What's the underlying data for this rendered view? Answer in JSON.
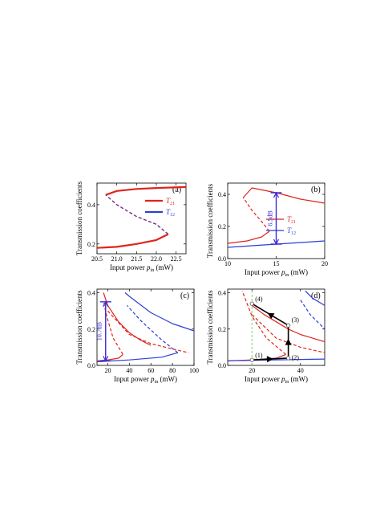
{
  "panels": [
    {
      "label": "(a)",
      "ylabel": "Transmission coefficients",
      "xlabel": "Input power",
      "xsym": "p",
      "xsub": "in",
      "xunit": "(mW)",
      "xticks": [
        "20.5",
        "21.0",
        "21.5",
        "22.0",
        "22.5"
      ],
      "yticks": [
        "0.2",
        "0.4"
      ],
      "legend": [
        {
          "sym": "T",
          "sub": "21",
          "color": "#e0241c"
        },
        {
          "sym": "T",
          "sub": "12",
          "color": "#2a3fd6"
        }
      ]
    },
    {
      "label": "(b)",
      "ylabel": "Transmission coefficients",
      "xlabel": "Input power",
      "xsym": "p",
      "xsub": "in",
      "xunit": "(mW)",
      "xticks": [
        "10",
        "15",
        "20"
      ],
      "yticks": [
        "0.0",
        "0.2",
        "0.4"
      ],
      "legend": [
        {
          "sym": "T",
          "sub": "21",
          "color": "#e0241c"
        },
        {
          "sym": "T",
          "sub": "12",
          "color": "#2a3fd6"
        }
      ],
      "annotation": "6.5dB"
    },
    {
      "label": "(c)",
      "ylabel": "Transmission coefficients",
      "xlabel": "Input power",
      "xsym": "p",
      "xsub": "in",
      "xunit": "(mW)",
      "xticks": [
        "20",
        "40",
        "60",
        "80",
        "100"
      ],
      "yticks": [
        "0.0",
        "0.2",
        "0.4"
      ],
      "annotation": "10.7dB"
    },
    {
      "label": "(d)",
      "ylabel": "Transmission coefficients",
      "xlabel": "Input power",
      "xsym": "p",
      "xsub": "in",
      "xunit": "(mW)",
      "xticks": [
        "20",
        "40"
      ],
      "yticks": [
        "0.0",
        "0.2",
        "0.4"
      ],
      "points": [
        "(1)",
        "(2)",
        "(3)",
        "(4)"
      ]
    }
  ],
  "chart_data": [
    {
      "type": "line",
      "panel": "(a)",
      "xlim": [
        20.5,
        22.75
      ],
      "ylim": [
        0.15,
        0.51
      ],
      "series": [
        {
          "name": "T21",
          "color": "#e0241c",
          "stable_lower": {
            "x": [
              20.5,
              21.0,
              21.5,
              22.0,
              22.3
            ],
            "y": [
              0.18,
              0.185,
              0.2,
              0.22,
              0.25
            ]
          },
          "unstable": {
            "x": [
              22.3,
              22.0,
              21.5,
              21.0,
              20.72
            ],
            "y": [
              0.25,
              0.3,
              0.34,
              0.4,
              0.45
            ]
          },
          "stable_upper": {
            "x": [
              20.72,
              21.0,
              21.5,
              22.0,
              22.75
            ],
            "y": [
              0.45,
              0.47,
              0.48,
              0.485,
              0.49
            ]
          }
        },
        {
          "name": "T12",
          "color": "#2a3fd6",
          "stable_lower": {
            "x": [
              20.5,
              21.0,
              21.5,
              22.0,
              22.3
            ],
            "y": [
              0.18,
              0.185,
              0.2,
              0.22,
              0.25
            ]
          },
          "unstable": {
            "x": [
              22.3,
              22.0,
              21.5,
              21.0,
              20.72
            ],
            "y": [
              0.25,
              0.3,
              0.34,
              0.4,
              0.45
            ]
          },
          "stable_upper": {
            "x": [
              20.72,
              21.0,
              21.5,
              22.0,
              22.75
            ],
            "y": [
              0.45,
              0.47,
              0.48,
              0.485,
              0.49
            ]
          }
        }
      ]
    },
    {
      "type": "line",
      "panel": "(b)",
      "xlim": [
        10,
        20
      ],
      "ylim": [
        0.0,
        0.47
      ],
      "series": [
        {
          "name": "T21",
          "color": "#e0241c",
          "stable_lower": {
            "x": [
              10,
              12,
              13.5,
              14.3
            ],
            "y": [
              0.095,
              0.11,
              0.135,
              0.17
            ]
          },
          "unstable": {
            "x": [
              14.3,
              13.5,
              12.5,
              11.6
            ],
            "y": [
              0.17,
              0.23,
              0.3,
              0.38
            ]
          },
          "stable_upper": {
            "x": [
              11.6,
              12.5,
              15,
              17.5,
              20
            ],
            "y": [
              0.38,
              0.44,
              0.41,
              0.37,
              0.345
            ]
          }
        },
        {
          "name": "T12",
          "color": "#2a3fd6",
          "stable_lower": {
            "x": [
              10,
              12.5,
              15,
              17.5,
              20
            ],
            "y": [
              0.07,
              0.08,
              0.09,
              0.1,
              0.11
            ]
          }
        }
      ],
      "marker_range": {
        "x": 15,
        "y": [
          0.09,
          0.41
        ]
      }
    },
    {
      "type": "line",
      "panel": "(c)",
      "xlim": [
        10,
        100
      ],
      "ylim": [
        0.0,
        0.42
      ],
      "series": [
        {
          "name": "T21",
          "color": "#e0241c",
          "stable_lower": {
            "x": [
              10,
              20,
              30,
              34
            ],
            "y": [
              0.025,
              0.03,
              0.04,
              0.06
            ]
          },
          "unstable": {
            "x": [
              34,
              25,
              19,
              16
            ],
            "y": [
              0.06,
              0.15,
              0.27,
              0.35
            ]
          },
          "stable_upper": {
            "x": [
              16,
              20,
              30,
              40,
              50,
              60
            ],
            "y": [
              0.4,
              0.33,
              0.24,
              0.18,
              0.14,
              0.11
            ]
          },
          "branch2_dashed": {
            "x": [
              20,
              40,
              60,
              80,
              95
            ],
            "y": [
              0.3,
              0.17,
              0.12,
              0.09,
              0.07
            ]
          }
        },
        {
          "name": "T12",
          "color": "#2a3fd6",
          "stable_lower": {
            "x": [
              10,
              40,
              70,
              85
            ],
            "y": [
              0.02,
              0.03,
              0.045,
              0.07
            ]
          },
          "unstable": {
            "x": [
              85,
              70,
              50,
              38
            ],
            "y": [
              0.07,
              0.14,
              0.25,
              0.33
            ]
          },
          "stable_upper": {
            "x": [
              36,
              40,
              60,
              80,
              100
            ],
            "y": [
              0.4,
              0.38,
              0.29,
              0.23,
              0.19
            ]
          }
        }
      ],
      "marker_range": {
        "x": 18,
        "y": [
          0.025,
          0.35
        ]
      }
    },
    {
      "type": "line",
      "panel": "(d)",
      "xlim": [
        10,
        50
      ],
      "ylim": [
        0.0,
        0.42
      ],
      "series": [
        {
          "name": "T21",
          "color": "#e0241c",
          "stable_lower": {
            "x": [
              10,
              20,
              30,
              34
            ],
            "y": [
              0.025,
              0.03,
              0.04,
              0.06
            ]
          },
          "unstable": {
            "x": [
              34,
              26,
              20,
              16
            ],
            "y": [
              0.06,
              0.15,
              0.27,
              0.41
            ]
          },
          "stable_upper": {
            "x": [
              20,
              25,
              30,
              35,
              40,
              45,
              50
            ],
            "y": [
              0.33,
              0.28,
              0.24,
              0.2,
              0.17,
              0.15,
              0.13
            ]
          },
          "branch2_dashed": {
            "x": [
              20,
              30,
              40,
              50
            ],
            "y": [
              0.28,
              0.15,
              0.1,
              0.07
            ]
          }
        },
        {
          "name": "T12",
          "color": "#2a3fd6",
          "stable_lower": {
            "x": [
              10,
              30,
              50
            ],
            "y": [
              0.025,
              0.03,
              0.035
            ]
          },
          "stable_upper": {
            "x": [
              42,
              45,
              50
            ],
            "y": [
              0.41,
              0.37,
              0.33
            ]
          },
          "unstable": {
            "x": [
              40,
              44,
              50
            ],
            "y": [
              0.36,
              0.28,
              0.2
            ]
          }
        }
      ],
      "path_points": [
        {
          "label": "(1)",
          "x": 20,
          "y": 0.03
        },
        {
          "label": "(2)",
          "x": 35,
          "y": 0.04
        },
        {
          "label": "(3)",
          "x": 35,
          "y": 0.22
        },
        {
          "label": "(4)",
          "x": 20,
          "y": 0.34
        }
      ]
    }
  ]
}
